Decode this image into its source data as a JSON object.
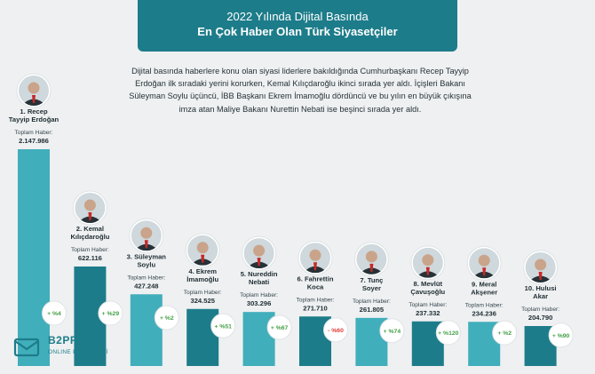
{
  "title": {
    "line1": "2022 Yılında Dijital Basında",
    "line2": "En Çok Haber Olan Türk Siyasetçiler"
  },
  "intro": "Dijital basında haberlere konu olan siyasi liderlere bakıldığında Cumhurbaşkanı Recep Tayyip Erdoğan ilk sıradaki yerini korurken, Kemal Kılıçdaroğlu ikinci sırada yer aldı. İçişleri Bakanı Süleyman Soylu üçüncü, İBB Başkanı Ekrem İmamoğlu dördüncü ve bu yılın en büyük çıkışına imza atan Maliye Bakanı Nurettin Nebati ise beşinci sırada yer aldı.",
  "logo": {
    "name": "B2PRESS",
    "subtitle": "ONLINE PR SERVİSİ"
  },
  "colors": {
    "banner": "#1d7c8a",
    "bar_light": "#41aebb",
    "bar_dark": "#1d7c8a",
    "badge_positive": "#43a047",
    "badge_negative": "#e53935"
  },
  "chart_data": {
    "type": "bar",
    "value_label": "Toplam Haber:",
    "categories": [
      [
        "1. Recep",
        "Tayyip Erdoğan"
      ],
      [
        "2. Kemal",
        "Kılıçdaroğlu"
      ],
      [
        "3. Süleyman",
        "Soylu"
      ],
      [
        "4. Ekrem",
        "İmamoğlu"
      ],
      [
        "5. Nureddin",
        "Nebati"
      ],
      [
        "6. Fahrettin",
        "Koca"
      ],
      [
        "7. Tunç",
        "Soyer"
      ],
      [
        "8. Mevlüt",
        "Çavuşoğlu"
      ],
      [
        "9. Meral",
        "Akşener"
      ],
      [
        "10. Hulusi",
        "Akar"
      ]
    ],
    "values": [
      2147986,
      622116,
      427248,
      324525,
      303296,
      271710,
      261805,
      237332,
      234236,
      204790
    ],
    "value_labels": [
      "2.147.986",
      "622.116",
      "427.248",
      "324.525",
      "303.296",
      "271.710",
      "261.805",
      "237.332",
      "234.236",
      "204.790"
    ],
    "changes": [
      "+ %4",
      "+ %29",
      "+ %2",
      "+ %51",
      "+ %67",
      "- %60",
      "+ %74",
      "+ %120",
      "+ %2",
      "+ %90"
    ],
    "change_signs": [
      "positive",
      "positive",
      "positive",
      "positive",
      "positive",
      "negative",
      "positive",
      "positive",
      "positive",
      "positive"
    ],
    "avatar_icons": [
      "person-avatar-icon",
      "person-avatar-icon",
      "person-avatar-icon",
      "person-avatar-icon",
      "person-avatar-icon",
      "person-avatar-icon",
      "person-avatar-icon",
      "person-avatar-icon",
      "person-avatar-icon",
      "person-avatar-icon"
    ]
  }
}
